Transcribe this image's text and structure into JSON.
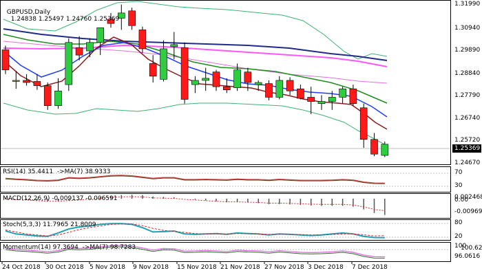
{
  "chart": {
    "symbol_label": "GBPUSD,Daily",
    "ohlc_label": "1.24838 1.25497 1.24760 1.25369",
    "current_price": "1.25369",
    "price_ticks": [
      "1.31990",
      "1.30940",
      "1.29890",
      "1.28840",
      "1.27790",
      "1.26740",
      "1.25720",
      "1.24670"
    ],
    "dates": [
      "24 Oct 2018",
      "30 Oct 2018",
      "5 Nov 2018",
      "9 Nov 2018",
      "15 Nov 2018",
      "21 Nov 2018",
      "27 Nov 2018",
      "3 Dec 2018",
      "7 Dec 2018"
    ]
  },
  "rsi_pane": {
    "label": "RSI(14) 35.4411  ->MA(7) 38.9333",
    "ticks": [
      "70",
      "30"
    ]
  },
  "macd_pane": {
    "label": "MACD(12,26,9) -0.009137 -0.006591",
    "ticks": [
      "0.002468",
      "0.00",
      "-0.00969"
    ]
  },
  "stoch_pane": {
    "label": "Stoch(5,3,3) 11.7965 21.8009",
    "ticks": [
      "80",
      "20"
    ]
  },
  "momentum_pane": {
    "label": "Momentum(14) 97.3694  ->MA(7) 98.7283",
    "ticks": [
      "100",
      "100.6206",
      "96.0616"
    ]
  },
  "colors": {
    "bull": "#2ecc40",
    "bear": "#ff1a1a",
    "ma_fast": "#8b1a1a",
    "ma_blue": "#1e3cff",
    "ma_green": "#1e8c1e",
    "ma_pink": "#ff66ff",
    "ma_navy": "#1e2a8c",
    "bollinger": "#3cb371",
    "ma_orchid": "#e060e0",
    "osc_cyan": "#1ea0b4",
    "osc_red": "#dd2020"
  },
  "chart_data": {
    "type": "candlestick",
    "ylim": [
      1.2445,
      1.3215
    ],
    "candles": [
      {
        "o": 1.2985,
        "h": 1.3005,
        "l": 1.287,
        "c": 1.289
      },
      {
        "o": 1.2835,
        "h": 1.2885,
        "l": 1.28,
        "c": 1.284
      },
      {
        "o": 1.284,
        "h": 1.287,
        "l": 1.2815,
        "c": 1.283
      },
      {
        "o": 1.2835,
        "h": 1.287,
        "l": 1.2795,
        "c": 1.2815
      },
      {
        "o": 1.2815,
        "h": 1.283,
        "l": 1.27,
        "c": 1.272
      },
      {
        "o": 1.272,
        "h": 1.285,
        "l": 1.2705,
        "c": 1.279
      },
      {
        "o": 1.282,
        "h": 1.304,
        "l": 1.279,
        "c": 1.302
      },
      {
        "o": 1.2995,
        "h": 1.305,
        "l": 1.2935,
        "c": 1.296
      },
      {
        "o": 1.298,
        "h": 1.304,
        "l": 1.295,
        "c": 1.302
      },
      {
        "o": 1.302,
        "h": 1.309,
        "l": 1.296,
        "c": 1.309
      },
      {
        "o": 1.313,
        "h": 1.316,
        "l": 1.309,
        "c": 1.311
      },
      {
        "o": 1.3135,
        "h": 1.32,
        "l": 1.308,
        "c": 1.316
      },
      {
        "o": 1.317,
        "h": 1.3185,
        "l": 1.308,
        "c": 1.31
      },
      {
        "o": 1.308,
        "h": 1.3095,
        "l": 1.297,
        "c": 1.299
      },
      {
        "o": 1.292,
        "h": 1.296,
        "l": 1.283,
        "c": 1.286
      },
      {
        "o": 1.2845,
        "h": 1.303,
        "l": 1.2835,
        "c": 1.299
      },
      {
        "o": 1.3,
        "h": 1.307,
        "l": 1.294,
        "c": 1.301
      },
      {
        "o": 1.2995,
        "h": 1.302,
        "l": 1.273,
        "c": 1.275
      },
      {
        "o": 1.282,
        "h": 1.286,
        "l": 1.278,
        "c": 1.284
      },
      {
        "o": 1.284,
        "h": 1.29,
        "l": 1.279,
        "c": 1.285
      },
      {
        "o": 1.288,
        "h": 1.289,
        "l": 1.279,
        "c": 1.281
      },
      {
        "o": 1.281,
        "h": 1.285,
        "l": 1.278,
        "c": 1.2795
      },
      {
        "o": 1.2805,
        "h": 1.292,
        "l": 1.279,
        "c": 1.289
      },
      {
        "o": 1.288,
        "h": 1.29,
        "l": 1.279,
        "c": 1.283
      },
      {
        "o": 1.282,
        "h": 1.284,
        "l": 1.279,
        "c": 1.283
      },
      {
        "o": 1.2825,
        "h": 1.284,
        "l": 1.2745,
        "c": 1.276
      },
      {
        "o": 1.276,
        "h": 1.286,
        "l": 1.275,
        "c": 1.284
      },
      {
        "o": 1.284,
        "h": 1.2855,
        "l": 1.277,
        "c": 1.279
      },
      {
        "o": 1.28,
        "h": 1.282,
        "l": 1.275,
        "c": 1.2755
      },
      {
        "o": 1.276,
        "h": 1.281,
        "l": 1.268,
        "c": 1.274
      },
      {
        "o": 1.273,
        "h": 1.277,
        "l": 1.27,
        "c": 1.274
      },
      {
        "o": 1.274,
        "h": 1.279,
        "l": 1.27,
        "c": 1.276
      },
      {
        "o": 1.276,
        "h": 1.281,
        "l": 1.273,
        "c": 1.28
      },
      {
        "o": 1.28,
        "h": 1.282,
        "l": 1.272,
        "c": 1.273
      },
      {
        "o": 1.271,
        "h": 1.273,
        "l": 1.252,
        "c": 1.256
      },
      {
        "o": 1.256,
        "h": 1.259,
        "l": 1.248,
        "c": 1.249
      },
      {
        "o": 1.2484,
        "h": 1.255,
        "l": 1.2476,
        "c": 1.2537
      }
    ],
    "rsi": [
      55,
      52,
      50,
      47,
      46,
      48,
      58,
      56,
      58,
      62,
      66,
      67,
      65,
      60,
      55,
      58,
      58,
      50,
      50,
      51,
      50,
      49,
      52,
      50,
      50,
      48,
      51,
      49,
      47,
      47,
      47,
      48,
      50,
      48,
      40,
      36,
      35.44
    ],
    "macd_hist": [
      0.0005,
      0.0,
      -0.0005,
      -0.001,
      -0.0015,
      -0.0015,
      -0.001,
      -0.0005,
      0.0002,
      0.0008,
      0.0015,
      0.002,
      0.0022,
      0.002,
      0.0012,
      0.001,
      0.0008,
      0.0,
      -0.0005,
      -0.001,
      -0.0015,
      -0.002,
      -0.002,
      -0.0022,
      -0.0025,
      -0.003,
      -0.003,
      -0.0032,
      -0.0035,
      -0.0038,
      -0.004,
      -0.004,
      -0.004,
      -0.0045,
      -0.006,
      -0.008,
      -0.0091
    ],
    "stoch_k": [
      45,
      30,
      25,
      20,
      18,
      35,
      55,
      65,
      70,
      78,
      82,
      82,
      78,
      62,
      40,
      42,
      45,
      30,
      28,
      30,
      32,
      28,
      35,
      32,
      30,
      25,
      30,
      28,
      25,
      22,
      25,
      30,
      35,
      30,
      18,
      12,
      11.8
    ],
    "stoch_d": [
      50,
      40,
      30,
      25,
      20,
      25,
      38,
      52,
      62,
      70,
      78,
      80,
      80,
      72,
      58,
      48,
      42,
      38,
      32,
      30,
      30,
      30,
      32,
      32,
      30,
      28,
      28,
      28,
      27,
      25,
      25,
      27,
      30,
      30,
      26,
      20,
      21.8
    ],
    "momentum": [
      100.5,
      100.0,
      99.8,
      99.5,
      99.2,
      99.6,
      100.6,
      100.4,
      100.6,
      101.0,
      101.4,
      101.5,
      101.2,
      100.6,
      99.8,
      100.4,
      100.3,
      99.4,
      99.5,
      99.7,
      99.5,
      99.3,
      99.8,
      99.6,
      99.5,
      99.2,
      99.6,
      99.3,
      99.0,
      98.9,
      99.0,
      99.2,
      99.5,
      99.0,
      98.0,
      97.4,
      97.37
    ]
  }
}
